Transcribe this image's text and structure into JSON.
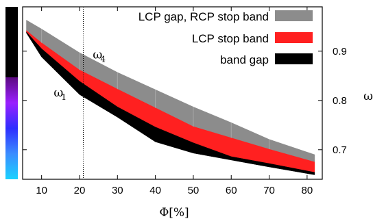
{
  "chart_data": {
    "type": "area",
    "xlabel": "Φ[%]",
    "ylabel": "ω",
    "xlim": [
      5,
      84
    ],
    "ylim": [
      0.64,
      0.99
    ],
    "x_ticks": [
      10,
      20,
      30,
      40,
      50,
      60,
      70,
      80
    ],
    "y_ticks": [
      0.7,
      0.8,
      0.9
    ],
    "y_tick_labels": [
      "0.7",
      "0.8",
      "0.9"
    ],
    "y_axis_side": "right",
    "grid": false,
    "legend_position": "top-right",
    "x": [
      6,
      10,
      20,
      30,
      40,
      50,
      60,
      70,
      82
    ],
    "series": [
      {
        "name": "LCP gap, RCP stop band",
        "color": "#8c8c8c",
        "lower": [
          0.942,
          0.917,
          0.862,
          0.823,
          0.785,
          0.747,
          0.724,
          0.701,
          0.675
        ],
        "upper": [
          0.963,
          0.945,
          0.897,
          0.857,
          0.822,
          0.787,
          0.755,
          0.721,
          0.69
        ]
      },
      {
        "name": "LCP stop band",
        "color": "#ff2020",
        "lower": [
          0.939,
          0.905,
          0.839,
          0.787,
          0.746,
          0.714,
          0.686,
          0.672,
          0.654
        ],
        "upper": [
          0.942,
          0.917,
          0.862,
          0.823,
          0.785,
          0.747,
          0.724,
          0.701,
          0.675
        ]
      },
      {
        "name": "band gap",
        "color": "#000000",
        "lower": [
          0.937,
          0.888,
          0.812,
          0.766,
          0.716,
          0.693,
          0.679,
          0.665,
          0.649
        ],
        "upper": [
          0.939,
          0.905,
          0.839,
          0.787,
          0.746,
          0.714,
          0.686,
          0.672,
          0.654
        ]
      }
    ],
    "vertical_line": {
      "x": 21,
      "style": "dotted"
    },
    "annotations": [
      {
        "base": "ω",
        "sub": "4",
        "x": 23.5,
        "y": 0.885
      },
      {
        "base": "ω",
        "sub": "1",
        "x": 13.2,
        "y": 0.808
      }
    ],
    "color_strip": {
      "side": "left",
      "segments": [
        {
          "from": 0.99,
          "to": 0.847,
          "colors": [
            "#000000",
            "#000000"
          ]
        },
        {
          "from": 0.847,
          "to": 0.64,
          "colors": [
            "#5b0a80",
            "#9a1fff",
            "#2e2eff",
            "#3b8dff",
            "#19d2ff"
          ]
        }
      ]
    }
  }
}
